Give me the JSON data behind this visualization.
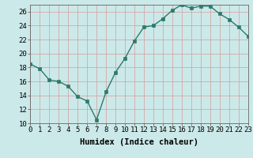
{
  "x": [
    0,
    1,
    2,
    3,
    4,
    5,
    6,
    7,
    8,
    9,
    10,
    11,
    12,
    13,
    14,
    15,
    16,
    17,
    18,
    19,
    20,
    21,
    22,
    23
  ],
  "y": [
    18.5,
    17.8,
    16.2,
    16.0,
    15.3,
    13.8,
    13.2,
    10.5,
    14.5,
    17.3,
    19.3,
    21.8,
    23.8,
    24.0,
    25.0,
    26.2,
    27.0,
    26.5,
    26.8,
    26.8,
    25.7,
    24.9,
    23.8,
    22.5
  ],
  "line_color": "#2d7a6e",
  "bg_color": "#cce9e9",
  "grid_color": "#d4a8a8",
  "xlabel": "Humidex (Indice chaleur)",
  "ylim": [
    10,
    27
  ],
  "xlim": [
    0,
    23
  ],
  "yticks": [
    10,
    12,
    14,
    16,
    18,
    20,
    22,
    24,
    26
  ],
  "xticks": [
    0,
    1,
    2,
    3,
    4,
    5,
    6,
    7,
    8,
    9,
    10,
    11,
    12,
    13,
    14,
    15,
    16,
    17,
    18,
    19,
    20,
    21,
    22,
    23
  ],
  "xlabel_fontsize": 7.5,
  "tick_fontsize": 6.5,
  "marker": "s",
  "markersize": 2.5,
  "linewidth": 1.0
}
